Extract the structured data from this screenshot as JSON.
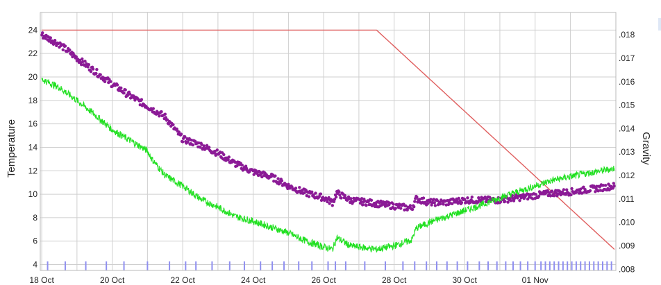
{
  "chart_data": {
    "type": "line",
    "ylabel": "Temperature",
    "y2label": "Gravity",
    "ylim": [
      3.5,
      25.5
    ],
    "y2lim": [
      0.00795,
      0.01895
    ],
    "xlim": [
      "2024-10-17T23:00",
      "2024-11-03T07:00"
    ],
    "x_ticks": [
      {
        "date": "2024-10-18",
        "label": "18 Oct"
      },
      {
        "date": "2024-10-20",
        "label": "20 Oct"
      },
      {
        "date": "2024-10-22",
        "label": "22 Oct"
      },
      {
        "date": "2024-10-24",
        "label": "24 Oct"
      },
      {
        "date": "2024-10-26",
        "label": "26 Oct"
      },
      {
        "date": "2024-10-28",
        "label": "28 Oct"
      },
      {
        "date": "2024-10-30",
        "label": "30 Oct"
      },
      {
        "date": "2024-11-01",
        "label": "01 Nov"
      }
    ],
    "y_ticks": [
      4,
      6,
      8,
      10,
      12,
      14,
      16,
      18,
      20,
      22,
      24
    ],
    "y_tick_labels": [
      "4",
      "6",
      "8",
      "10",
      "12",
      "14",
      "16",
      "18",
      "20",
      "22",
      "24"
    ],
    "y2_ticks": [
      0.008,
      0.009,
      0.01,
      0.011,
      0.012,
      0.013,
      0.014,
      0.015,
      0.016,
      0.017,
      0.018
    ],
    "y2_tick_labels": [
      ".008",
      ".009",
      ".010",
      ".011",
      ".012",
      ".013",
      ".014",
      ".015",
      ".016",
      ".017",
      ".018"
    ],
    "grid": true,
    "series": [
      {
        "color": "#e06060",
        "axis": "left",
        "style": "line",
        "points": [
          [
            "2024-10-18T00:00",
            24.0
          ],
          [
            "2024-10-27T12:00",
            24.0
          ],
          [
            "2024-11-03T06:00",
            5.3
          ]
        ]
      },
      {
        "color": "#8b1a96",
        "axis": "left",
        "style": "dots",
        "points": [
          [
            "2024-10-18T00:00",
            23.6
          ],
          [
            "2024-10-18T12:00",
            22.8
          ],
          [
            "2024-10-19T00:00",
            21.6
          ],
          [
            "2024-10-19T12:00",
            20.5
          ],
          [
            "2024-10-20T00:00",
            19.4
          ],
          [
            "2024-10-20T12:00",
            18.4
          ],
          [
            "2024-10-21T00:00",
            17.5
          ],
          [
            "2024-10-21T12:00",
            16.6
          ],
          [
            "2024-10-22T00:00",
            14.7
          ],
          [
            "2024-10-22T12:00",
            14.2
          ],
          [
            "2024-10-23T00:00",
            13.5
          ],
          [
            "2024-10-23T12:00",
            12.6
          ],
          [
            "2024-10-24T00:00",
            11.9
          ],
          [
            "2024-10-24T12:00",
            11.5
          ],
          [
            "2024-10-25T00:00",
            10.7
          ],
          [
            "2024-10-25T12:00",
            10.1
          ],
          [
            "2024-10-26T00:00",
            9.7
          ],
          [
            "2024-10-26T06:00",
            9.3
          ],
          [
            "2024-10-26T09:00",
            10.1
          ],
          [
            "2024-10-26T18:00",
            9.5
          ],
          [
            "2024-10-27T12:00",
            9.2
          ],
          [
            "2024-10-28T00:00",
            9.0
          ],
          [
            "2024-10-28T12:00",
            8.8
          ],
          [
            "2024-10-28T15:00",
            9.6
          ],
          [
            "2024-10-29T00:00",
            9.3
          ],
          [
            "2024-10-29T12:00",
            9.3
          ],
          [
            "2024-10-30T00:00",
            9.5
          ],
          [
            "2024-10-30T12:00",
            9.5
          ],
          [
            "2024-10-31T00:00",
            9.5
          ],
          [
            "2024-10-31T12:00",
            9.7
          ],
          [
            "2024-11-01T00:00",
            9.9
          ],
          [
            "2024-11-01T12:00",
            10.1
          ],
          [
            "2024-11-02T00:00",
            10.2
          ],
          [
            "2024-11-02T12:00",
            10.4
          ],
          [
            "2024-11-03T06:00",
            10.7
          ]
        ]
      },
      {
        "color": "#22e022",
        "axis": "left",
        "style": "line",
        "points": [
          [
            "2024-10-18T00:00",
            19.8
          ],
          [
            "2024-10-18T12:00",
            19.1
          ],
          [
            "2024-10-19T00:00",
            18.0
          ],
          [
            "2024-10-19T12:00",
            16.8
          ],
          [
            "2024-10-20T00:00",
            15.5
          ],
          [
            "2024-10-20T12:00",
            14.6
          ],
          [
            "2024-10-21T00:00",
            13.7
          ],
          [
            "2024-10-21T03:00",
            13.0
          ],
          [
            "2024-10-21T12:00",
            11.6
          ],
          [
            "2024-10-22T00:00",
            10.7
          ],
          [
            "2024-10-22T12:00",
            9.6
          ],
          [
            "2024-10-23T00:00",
            8.9
          ],
          [
            "2024-10-23T12:00",
            8.1
          ],
          [
            "2024-10-24T00:00",
            7.7
          ],
          [
            "2024-10-24T12:00",
            7.2
          ],
          [
            "2024-10-25T00:00",
            6.7
          ],
          [
            "2024-10-25T12:00",
            6.0
          ],
          [
            "2024-10-26T00:00",
            5.5
          ],
          [
            "2024-10-26T06:00",
            5.3
          ],
          [
            "2024-10-26T09:00",
            6.3
          ],
          [
            "2024-10-26T18:00",
            5.6
          ],
          [
            "2024-10-27T12:00",
            5.3
          ],
          [
            "2024-10-28T00:00",
            5.6
          ],
          [
            "2024-10-28T12:00",
            6.1
          ],
          [
            "2024-10-28T15:00",
            7.1
          ],
          [
            "2024-10-29T00:00",
            7.6
          ],
          [
            "2024-10-29T12:00",
            8.1
          ],
          [
            "2024-10-30T00:00",
            8.6
          ],
          [
            "2024-10-30T12:00",
            9.1
          ],
          [
            "2024-10-31T00:00",
            9.7
          ],
          [
            "2024-10-31T12:00",
            10.2
          ],
          [
            "2024-11-01T00:00",
            10.7
          ],
          [
            "2024-11-01T12:00",
            11.2
          ],
          [
            "2024-11-02T00:00",
            11.5
          ],
          [
            "2024-11-02T12:00",
            11.8
          ],
          [
            "2024-11-03T06:00",
            12.2
          ]
        ]
      }
    ],
    "events": {
      "color": "#8f8ff0",
      "dates": [
        "2024-10-18T04:00",
        "2024-10-18T16:00",
        "2024-10-19T06:00",
        "2024-10-19T20:00",
        "2024-10-20T08:00",
        "2024-10-21T00:00",
        "2024-10-21T15:00",
        "2024-10-22T02:00",
        "2024-10-22T09:00",
        "2024-10-22T20:00",
        "2024-10-23T08:00",
        "2024-10-23T18:00",
        "2024-10-24T05:00",
        "2024-10-24T13:00",
        "2024-10-24T21:00",
        "2024-10-25T07:00",
        "2024-10-25T16:00",
        "2024-10-26T03:00",
        "2024-10-26T08:00",
        "2024-10-26T15:00",
        "2024-10-27T04:00",
        "2024-10-27T18:00",
        "2024-10-28T06:00",
        "2024-10-28T14:00",
        "2024-10-28T22:00",
        "2024-10-29T05:00",
        "2024-10-29T12:00",
        "2024-10-29T19:00",
        "2024-10-30T02:00",
        "2024-10-30T10:00",
        "2024-10-30T16:00",
        "2024-10-30T22:00",
        "2024-10-31T04:00",
        "2024-10-31T09:00",
        "2024-10-31T14:00",
        "2024-10-31T19:00",
        "2024-11-01T00:00",
        "2024-11-01T04:00",
        "2024-11-01T07:00",
        "2024-11-01T10:00",
        "2024-11-01T13:00",
        "2024-11-01T16:00",
        "2024-11-01T19:00",
        "2024-11-01T22:00",
        "2024-11-02T01:00",
        "2024-11-02T04:00",
        "2024-11-02T07:00",
        "2024-11-02T10:00",
        "2024-11-02T13:00",
        "2024-11-02T16:00",
        "2024-11-02T19:00",
        "2024-11-02T22:00",
        "2024-11-03T01:00",
        "2024-11-03T04:00"
      ]
    }
  }
}
